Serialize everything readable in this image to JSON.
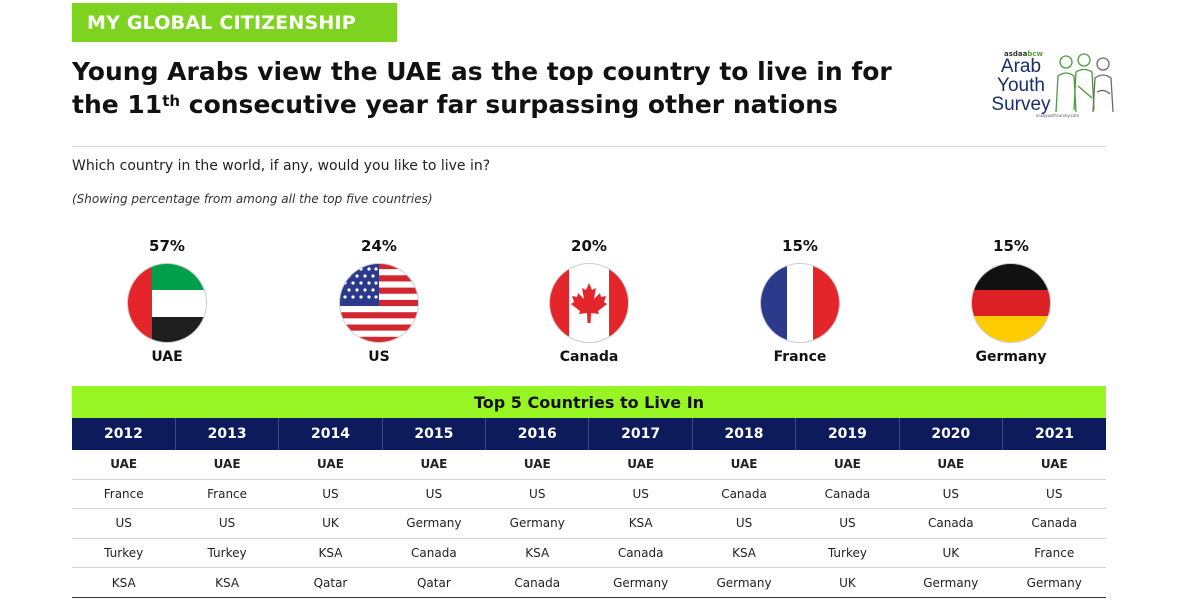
{
  "header": {
    "tag": "MY GLOBAL CITIZENSHIP",
    "headline_part1": "Young Arabs view the UAE as the top country to live in for",
    "headline_part2a": "the 11",
    "headline_sup": "th",
    "headline_part2b": " consecutive year far surpassing other nations"
  },
  "logo": {
    "small_brand_a": "asdaa",
    "small_brand_b": "bcw",
    "line1": "Arab",
    "line2": "Youth",
    "line3": "Survey",
    "url": "arabyouthsurvey.com"
  },
  "question": "Which country in the world, if any, would you like to live in?",
  "subquestion": "(Showing percentage from among all the top five countries)",
  "colors": {
    "tag_green": "#7ed321",
    "table_title_green": "#96f523",
    "header_navy": "#0d1a5c"
  },
  "chart_data": {
    "type": "bar",
    "categories": [
      "UAE",
      "US",
      "Canada",
      "France",
      "Germany"
    ],
    "values": [
      57,
      24,
      20,
      15,
      15
    ],
    "value_labels": [
      "57%",
      "24%",
      "20%",
      "15%",
      "15%"
    ],
    "flag_icons": [
      "uae-flag-icon",
      "us-flag-icon",
      "canada-flag-icon",
      "france-flag-icon",
      "germany-flag-icon"
    ]
  },
  "table": {
    "title": "Top 5 Countries to Live In",
    "years": [
      "2012",
      "2013",
      "2014",
      "2015",
      "2016",
      "2017",
      "2018",
      "2019",
      "2020",
      "2021"
    ],
    "rows": [
      [
        "UAE",
        "UAE",
        "UAE",
        "UAE",
        "UAE",
        "UAE",
        "UAE",
        "UAE",
        "UAE",
        "UAE"
      ],
      [
        "France",
        "France",
        "US",
        "US",
        "US",
        "US",
        "Canada",
        "Canada",
        "US",
        "US"
      ],
      [
        "US",
        "US",
        "UK",
        "Germany",
        "Germany",
        "KSA",
        "US",
        "US",
        "Canada",
        "Canada"
      ],
      [
        "Turkey",
        "Turkey",
        "KSA",
        "Canada",
        "KSA",
        "Canada",
        "KSA",
        "Turkey",
        "UK",
        "France"
      ],
      [
        "KSA",
        "KSA",
        "Qatar",
        "Qatar",
        "Canada",
        "Germany",
        "Germany",
        "UK",
        "Germany",
        "Germany"
      ]
    ]
  }
}
